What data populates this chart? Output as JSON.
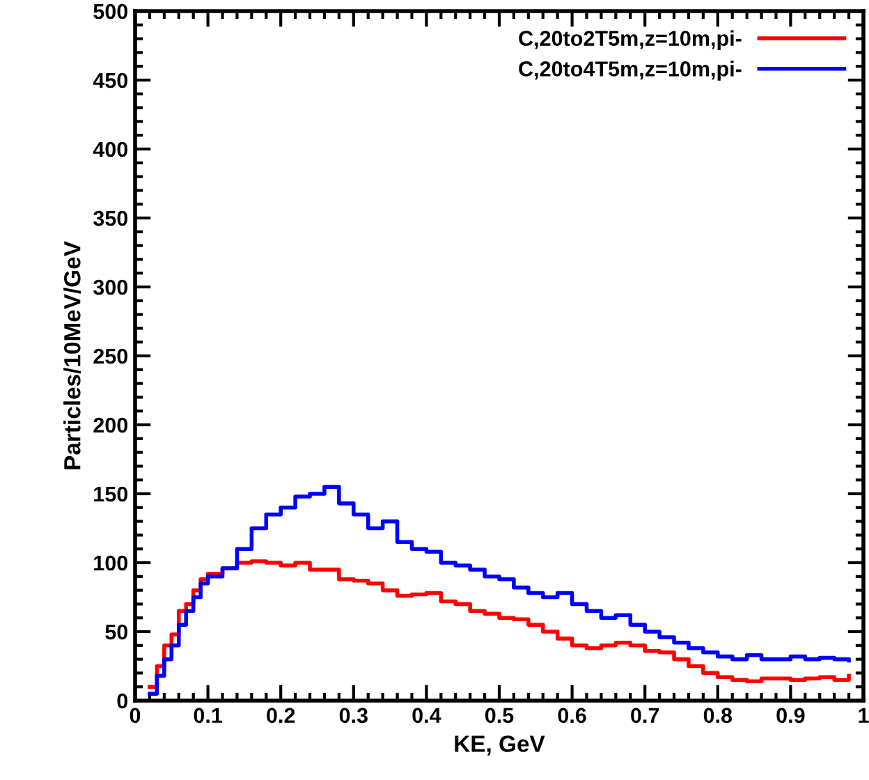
{
  "chart_data": {
    "type": "step",
    "xlabel": "KE, GeV",
    "ylabel": "Particles/10MeV/GeV",
    "xlim": [
      0,
      1
    ],
    "ylim": [
      0,
      500
    ],
    "xticks": [
      0,
      0.1,
      0.2,
      0.3,
      0.4,
      0.5,
      0.6,
      0.7,
      0.8,
      0.9,
      1
    ],
    "yticks": [
      0,
      50,
      100,
      150,
      200,
      250,
      300,
      350,
      400,
      450,
      500
    ],
    "grid": false,
    "legend": "top right",
    "line_style": "solid",
    "series": [
      {
        "name": "C,20to2T5m,z=10m,pi-",
        "color": "#ff0000",
        "x": [
          0.02,
          0.03,
          0.04,
          0.05,
          0.06,
          0.07,
          0.08,
          0.09,
          0.1,
          0.12,
          0.14,
          0.16,
          0.18,
          0.2,
          0.22,
          0.24,
          0.26,
          0.28,
          0.3,
          0.32,
          0.34,
          0.36,
          0.38,
          0.4,
          0.42,
          0.44,
          0.46,
          0.48,
          0.5,
          0.52,
          0.54,
          0.56,
          0.58,
          0.6,
          0.62,
          0.64,
          0.66,
          0.68,
          0.7,
          0.72,
          0.74,
          0.76,
          0.78,
          0.8,
          0.82,
          0.84,
          0.86,
          0.88,
          0.9,
          0.92,
          0.94,
          0.96,
          0.98
        ],
        "values": [
          10,
          25,
          40,
          48,
          65,
          70,
          80,
          88,
          92,
          96,
          100,
          101,
          100,
          98,
          100,
          95,
          95,
          88,
          87,
          85,
          80,
          76,
          77,
          78,
          72,
          70,
          65,
          63,
          60,
          59,
          55,
          50,
          45,
          40,
          38,
          40,
          42,
          40,
          36,
          35,
          30,
          25,
          20,
          17,
          15,
          14,
          16,
          16,
          15,
          16,
          17,
          15,
          18
        ]
      },
      {
        "name": "C,20to4T5m,z=10m,pi-",
        "color": "#0000ff",
        "x": [
          0.02,
          0.03,
          0.04,
          0.05,
          0.06,
          0.07,
          0.08,
          0.09,
          0.1,
          0.12,
          0.14,
          0.16,
          0.18,
          0.2,
          0.22,
          0.24,
          0.26,
          0.28,
          0.3,
          0.32,
          0.34,
          0.36,
          0.38,
          0.4,
          0.42,
          0.44,
          0.46,
          0.48,
          0.5,
          0.52,
          0.54,
          0.56,
          0.58,
          0.6,
          0.62,
          0.64,
          0.66,
          0.68,
          0.7,
          0.72,
          0.74,
          0.76,
          0.78,
          0.8,
          0.82,
          0.84,
          0.86,
          0.88,
          0.9,
          0.92,
          0.94,
          0.96,
          0.98
        ],
        "values": [
          5,
          18,
          30,
          40,
          55,
          65,
          75,
          85,
          90,
          96,
          110,
          125,
          135,
          140,
          148,
          150,
          155,
          143,
          135,
          125,
          130,
          115,
          110,
          108,
          100,
          98,
          95,
          90,
          88,
          82,
          78,
          75,
          78,
          70,
          65,
          60,
          62,
          55,
          50,
          46,
          42,
          38,
          35,
          32,
          30,
          33,
          30,
          30,
          32,
          30,
          31,
          30,
          29
        ]
      }
    ]
  }
}
